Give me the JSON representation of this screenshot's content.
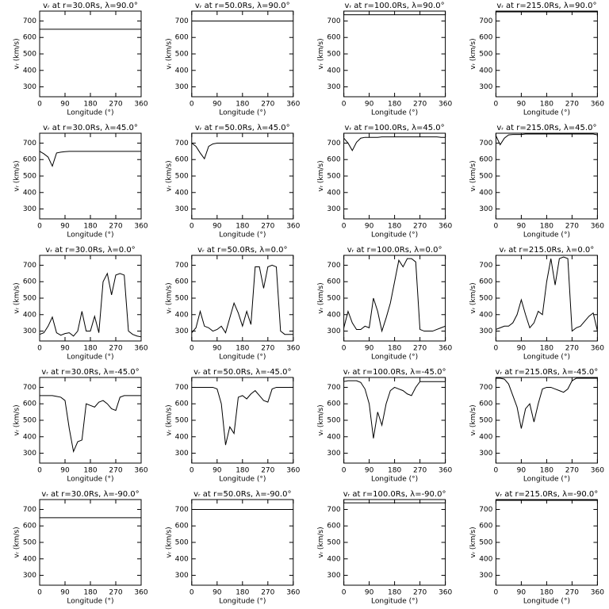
{
  "chart_data": [
    {
      "type": "line",
      "title": "vᵣ at r=30.0Rs, λ=90.0°",
      "x_label": "Longitude (°)",
      "y_label": "vᵣ (km/s)",
      "color": "#000000",
      "x": [
        0,
        360
      ],
      "values": [
        650,
        650
      ],
      "xlim": [
        0,
        360
      ],
      "ylim": [
        240,
        760
      ],
      "xticks": [
        0,
        90,
        180,
        270,
        360
      ],
      "yticks": [
        300,
        400,
        500,
        600,
        700
      ]
    },
    {
      "type": "line",
      "title": "vᵣ at r=50.0Rs, λ=90.0°",
      "x_label": "Longitude (°)",
      "y_label": "vᵣ (km/s)",
      "color": "#000000",
      "x": [
        0,
        360
      ],
      "values": [
        700,
        700
      ],
      "xlim": [
        0,
        360
      ],
      "ylim": [
        240,
        760
      ],
      "xticks": [
        0,
        90,
        180,
        270,
        360
      ],
      "yticks": [
        300,
        400,
        500,
        600,
        700
      ]
    },
    {
      "type": "line",
      "title": "vᵣ at r=100.0Rs, λ=90.0°",
      "x_label": "Longitude (°)",
      "y_label": "vᵣ (km/s)",
      "color": "#000000",
      "x": [
        0,
        360
      ],
      "values": [
        738,
        738
      ],
      "xlim": [
        0,
        360
      ],
      "ylim": [
        240,
        760
      ],
      "xticks": [
        0,
        90,
        180,
        270,
        360
      ],
      "yticks": [
        300,
        400,
        500,
        600,
        700
      ]
    },
    {
      "type": "line",
      "title": "vᵣ at r=215.0Rs, λ=90.0°",
      "x_label": "Longitude (°)",
      "y_label": "vᵣ (km/s)",
      "color": "#000000",
      "x": [
        0,
        360
      ],
      "values": [
        755,
        755
      ],
      "xlim": [
        0,
        360
      ],
      "ylim": [
        240,
        760
      ],
      "xticks": [
        0,
        90,
        180,
        270,
        360
      ],
      "yticks": [
        300,
        400,
        500,
        600,
        700
      ]
    },
    {
      "type": "line",
      "title": "vᵣ at r=30.0Rs, λ=45.0°",
      "x_label": "Longitude (°)",
      "y_label": "vᵣ (km/s)",
      "color": "#000000",
      "x": [
        0,
        15,
        30,
        45,
        60,
        75,
        90,
        105,
        120,
        135,
        150,
        165,
        180,
        195,
        210,
        225,
        240,
        255,
        270,
        285,
        300,
        315,
        330,
        345,
        360
      ],
      "values": [
        650,
        635,
        615,
        560,
        640,
        645,
        648,
        650,
        650,
        650,
        650,
        650,
        650,
        650,
        650,
        650,
        650,
        650,
        650,
        650,
        650,
        650,
        650,
        650,
        650
      ],
      "xlim": [
        0,
        360
      ],
      "ylim": [
        240,
        760
      ],
      "xticks": [
        0,
        90,
        180,
        270,
        360
      ],
      "yticks": [
        300,
        400,
        500,
        600,
        700
      ]
    },
    {
      "type": "line",
      "title": "vᵣ at r=50.0Rs, λ=45.0°",
      "x_label": "Longitude (°)",
      "y_label": "vᵣ (km/s)",
      "color": "#000000",
      "x": [
        0,
        15,
        30,
        45,
        60,
        75,
        90,
        105,
        120,
        135,
        150,
        165,
        180,
        195,
        210,
        225,
        240,
        255,
        270,
        285,
        300,
        315,
        330,
        345,
        360
      ],
      "values": [
        700,
        680,
        640,
        605,
        680,
        695,
        700,
        700,
        700,
        700,
        700,
        700,
        700,
        700,
        700,
        700,
        700,
        700,
        700,
        700,
        700,
        700,
        700,
        700,
        700
      ],
      "xlim": [
        0,
        360
      ],
      "ylim": [
        240,
        760
      ],
      "xticks": [
        0,
        90,
        180,
        270,
        360
      ],
      "yticks": [
        300,
        400,
        500,
        600,
        700
      ]
    },
    {
      "type": "line",
      "title": "vᵣ at r=100.0Rs, λ=45.0°",
      "x_label": "Longitude (°)",
      "y_label": "vᵣ (km/s)",
      "color": "#000000",
      "x": [
        0,
        15,
        30,
        45,
        60,
        75,
        90,
        105,
        120,
        135,
        150,
        165,
        180,
        195,
        210,
        225,
        240,
        255,
        270,
        285,
        300,
        315,
        330,
        345,
        360
      ],
      "values": [
        730,
        700,
        655,
        705,
        730,
        735,
        735,
        735,
        735,
        738,
        738,
        738,
        738,
        738,
        738,
        738,
        738,
        738,
        738,
        738,
        738,
        738,
        738,
        735,
        735
      ],
      "xlim": [
        0,
        360
      ],
      "ylim": [
        240,
        760
      ],
      "xticks": [
        0,
        90,
        180,
        270,
        360
      ],
      "yticks": [
        300,
        400,
        500,
        600,
        700
      ]
    },
    {
      "type": "line",
      "title": "vᵣ at r=215.0Rs, λ=45.0°",
      "x_label": "Longitude (°)",
      "y_label": "vᵣ (km/s)",
      "color": "#000000",
      "x": [
        0,
        15,
        30,
        45,
        60,
        75,
        90,
        105,
        120,
        135,
        150,
        165,
        180,
        195,
        210,
        225,
        240,
        255,
        270,
        285,
        300,
        315,
        330,
        345,
        360
      ],
      "values": [
        745,
        690,
        730,
        750,
        752,
        752,
        752,
        755,
        755,
        755,
        755,
        755,
        755,
        755,
        755,
        755,
        755,
        755,
        755,
        755,
        755,
        755,
        755,
        755,
        750
      ],
      "xlim": [
        0,
        360
      ],
      "ylim": [
        240,
        760
      ],
      "xticks": [
        0,
        90,
        180,
        270,
        360
      ],
      "yticks": [
        300,
        400,
        500,
        600,
        700
      ]
    },
    {
      "type": "line",
      "title": "vᵣ at r=30.0Rs, λ=0.0°",
      "x_label": "Longitude (°)",
      "y_label": "vᵣ (km/s)",
      "color": "#000000",
      "x": [
        0,
        15,
        30,
        45,
        60,
        75,
        90,
        105,
        120,
        135,
        150,
        165,
        180,
        195,
        210,
        225,
        240,
        255,
        270,
        285,
        300,
        315,
        330,
        345,
        360
      ],
      "values": [
        280,
        290,
        330,
        385,
        290,
        275,
        285,
        290,
        270,
        300,
        420,
        300,
        300,
        390,
        290,
        600,
        650,
        520,
        640,
        650,
        640,
        300,
        280,
        270,
        265
      ],
      "xlim": [
        0,
        360
      ],
      "ylim": [
        240,
        760
      ],
      "xticks": [
        0,
        90,
        180,
        270,
        360
      ],
      "yticks": [
        300,
        400,
        500,
        600,
        700
      ]
    },
    {
      "type": "line",
      "title": "vᵣ at r=50.0Rs, λ=0.0°",
      "x_label": "Longitude (°)",
      "y_label": "vᵣ (km/s)",
      "color": "#000000",
      "x": [
        0,
        15,
        30,
        45,
        60,
        75,
        90,
        105,
        120,
        135,
        150,
        165,
        180,
        195,
        210,
        225,
        240,
        255,
        270,
        285,
        300,
        315,
        330,
        345,
        360
      ],
      "values": [
        290,
        320,
        420,
        330,
        320,
        300,
        310,
        330,
        290,
        380,
        470,
        410,
        330,
        420,
        340,
        690,
        690,
        560,
        690,
        700,
        690,
        300,
        280,
        280,
        280
      ],
      "xlim": [
        0,
        360
      ],
      "ylim": [
        240,
        760
      ],
      "xticks": [
        0,
        90,
        180,
        270,
        360
      ],
      "yticks": [
        300,
        400,
        500,
        600,
        700
      ]
    },
    {
      "type": "line",
      "title": "vᵣ at r=100.0Rs, λ=0.0°",
      "x_label": "Longitude (°)",
      "y_label": "vᵣ (km/s)",
      "color": "#000000",
      "x": [
        0,
        15,
        30,
        45,
        60,
        75,
        90,
        105,
        120,
        135,
        150,
        165,
        180,
        195,
        210,
        225,
        240,
        255,
        270,
        285,
        300,
        315,
        330,
        345,
        360
      ],
      "values": [
        320,
        420,
        350,
        310,
        310,
        330,
        320,
        500,
        420,
        300,
        380,
        470,
        600,
        730,
        690,
        740,
        740,
        720,
        310,
        300,
        300,
        300,
        310,
        320,
        330
      ],
      "xlim": [
        0,
        360
      ],
      "ylim": [
        240,
        760
      ],
      "xticks": [
        0,
        90,
        180,
        270,
        360
      ],
      "yticks": [
        300,
        400,
        500,
        600,
        700
      ]
    },
    {
      "type": "line",
      "title": "vᵣ at r=215.0Rs, λ=0.0°",
      "x_label": "Longitude (°)",
      "y_label": "vᵣ (km/s)",
      "color": "#000000",
      "x": [
        0,
        15,
        30,
        45,
        60,
        75,
        90,
        105,
        120,
        135,
        150,
        165,
        180,
        195,
        210,
        225,
        240,
        255,
        270,
        285,
        300,
        315,
        330,
        345,
        360
      ],
      "values": [
        310,
        320,
        330,
        330,
        350,
        400,
        490,
        400,
        320,
        350,
        420,
        400,
        600,
        740,
        580,
        740,
        750,
        740,
        300,
        320,
        330,
        360,
        390,
        410,
        300
      ],
      "xlim": [
        0,
        360
      ],
      "ylim": [
        240,
        760
      ],
      "xticks": [
        0,
        90,
        180,
        270,
        360
      ],
      "yticks": [
        300,
        400,
        500,
        600,
        700
      ]
    },
    {
      "type": "line",
      "title": "vᵣ at r=30.0Rs, λ=-45.0°",
      "x_label": "Longitude (°)",
      "y_label": "vᵣ (km/s)",
      "color": "#000000",
      "x": [
        0,
        15,
        30,
        45,
        60,
        75,
        90,
        105,
        120,
        135,
        150,
        165,
        180,
        195,
        210,
        225,
        240,
        255,
        270,
        285,
        300,
        315,
        330,
        345,
        360
      ],
      "values": [
        650,
        650,
        650,
        650,
        645,
        640,
        620,
        450,
        310,
        370,
        380,
        600,
        590,
        580,
        610,
        620,
        600,
        570,
        560,
        640,
        650,
        650,
        650,
        650,
        650
      ],
      "xlim": [
        0,
        360
      ],
      "ylim": [
        240,
        760
      ],
      "xticks": [
        0,
        90,
        180,
        270,
        360
      ],
      "yticks": [
        300,
        400,
        500,
        600,
        700
      ]
    },
    {
      "type": "line",
      "title": "vᵣ at r=50.0Rs, λ=-45.0°",
      "x_label": "Longitude (°)",
      "y_label": "vᵣ (km/s)",
      "color": "#000000",
      "x": [
        0,
        15,
        30,
        45,
        60,
        75,
        90,
        105,
        120,
        135,
        150,
        165,
        180,
        195,
        210,
        225,
        240,
        255,
        270,
        285,
        300,
        315,
        330,
        345,
        360
      ],
      "values": [
        700,
        700,
        700,
        700,
        700,
        700,
        690,
        600,
        350,
        460,
        420,
        640,
        650,
        630,
        660,
        680,
        650,
        620,
        610,
        690,
        700,
        700,
        700,
        700,
        700
      ],
      "xlim": [
        0,
        360
      ],
      "ylim": [
        240,
        760
      ],
      "xticks": [
        0,
        90,
        180,
        270,
        360
      ],
      "yticks": [
        300,
        400,
        500,
        600,
        700
      ]
    },
    {
      "type": "line",
      "title": "vᵣ at r=100.0Rs, λ=-45.0°",
      "x_label": "Longitude (°)",
      "y_label": "vᵣ (km/s)",
      "color": "#000000",
      "x": [
        0,
        15,
        30,
        45,
        60,
        75,
        90,
        105,
        120,
        135,
        150,
        165,
        180,
        195,
        210,
        225,
        240,
        255,
        270,
        285,
        300,
        315,
        330,
        345,
        360
      ],
      "values": [
        735,
        740,
        740,
        740,
        730,
        690,
        600,
        390,
        550,
        470,
        600,
        680,
        700,
        690,
        680,
        660,
        650,
        700,
        735,
        735,
        735,
        735,
        735,
        735,
        735
      ],
      "xlim": [
        0,
        360
      ],
      "ylim": [
        240,
        760
      ],
      "xticks": [
        0,
        90,
        180,
        270,
        360
      ],
      "yticks": [
        300,
        400,
        500,
        600,
        700
      ]
    },
    {
      "type": "line",
      "title": "vᵣ at r=215.0Rs, λ=-45.0°",
      "x_label": "Longitude (°)",
      "y_label": "vᵣ (km/s)",
      "color": "#000000",
      "x": [
        0,
        15,
        30,
        45,
        60,
        75,
        90,
        105,
        120,
        135,
        150,
        165,
        180,
        195,
        210,
        225,
        240,
        255,
        270,
        285,
        300,
        315,
        330,
        345,
        360
      ],
      "values": [
        755,
        755,
        750,
        720,
        650,
        580,
        450,
        570,
        600,
        490,
        600,
        690,
        700,
        700,
        690,
        680,
        670,
        690,
        740,
        755,
        755,
        755,
        755,
        755,
        755
      ],
      "xlim": [
        0,
        360
      ],
      "ylim": [
        240,
        760
      ],
      "xticks": [
        0,
        90,
        180,
        270,
        360
      ],
      "yticks": [
        300,
        400,
        500,
        600,
        700
      ]
    },
    {
      "type": "line",
      "title": "vᵣ at r=30.0Rs, λ=-90.0°",
      "x_label": "Longitude (°)",
      "y_label": "vᵣ (km/s)",
      "color": "#000000",
      "x": [
        0,
        360
      ],
      "values": [
        650,
        650
      ],
      "xlim": [
        0,
        360
      ],
      "ylim": [
        240,
        760
      ],
      "xticks": [
        0,
        90,
        180,
        270,
        360
      ],
      "yticks": [
        300,
        400,
        500,
        600,
        700
      ]
    },
    {
      "type": "line",
      "title": "vᵣ at r=50.0Rs, λ=-90.0°",
      "x_label": "Longitude (°)",
      "y_label": "vᵣ (km/s)",
      "color": "#000000",
      "x": [
        0,
        360
      ],
      "values": [
        700,
        700
      ],
      "xlim": [
        0,
        360
      ],
      "ylim": [
        240,
        760
      ],
      "xticks": [
        0,
        90,
        180,
        270,
        360
      ],
      "yticks": [
        300,
        400,
        500,
        600,
        700
      ]
    },
    {
      "type": "line",
      "title": "vᵣ at r=100.0Rs, λ=-90.0°",
      "x_label": "Longitude (°)",
      "y_label": "vᵣ (km/s)",
      "color": "#000000",
      "x": [
        0,
        360
      ],
      "values": [
        740,
        740
      ],
      "xlim": [
        0,
        360
      ],
      "ylim": [
        240,
        760
      ],
      "xticks": [
        0,
        90,
        180,
        270,
        360
      ],
      "yticks": [
        300,
        400,
        500,
        600,
        700
      ]
    },
    {
      "type": "line",
      "title": "vᵣ at r=215.0Rs, λ=-90.0°",
      "x_label": "Longitude (°)",
      "y_label": "vᵣ (km/s)",
      "color": "#000000",
      "x": [
        0,
        360
      ],
      "values": [
        755,
        755
      ],
      "xlim": [
        0,
        360
      ],
      "ylim": [
        240,
        760
      ],
      "xticks": [
        0,
        90,
        180,
        270,
        360
      ],
      "yticks": [
        300,
        400,
        500,
        600,
        700
      ]
    }
  ]
}
